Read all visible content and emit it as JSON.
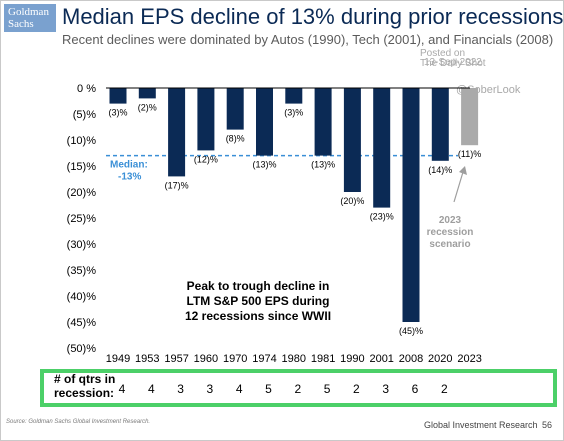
{
  "header": {
    "logo_line1": "Goldman",
    "logo_line2": "Sachs",
    "title": "Median EPS decline of 13% during prior recessions",
    "subtitle": "Recent declines were dominated by Autos (1990), Tech (2001), and Financials (2008)"
  },
  "watermark": {
    "line1": "Posted on",
    "line2": "The Daily Shot",
    "date": "13-Sep-2022",
    "handle": "@SoberLook"
  },
  "chart_data": {
    "type": "bar",
    "categories": [
      "1949",
      "1953",
      "1957",
      "1960",
      "1970",
      "1974",
      "1980",
      "1981",
      "1990",
      "2001",
      "2008",
      "2020",
      "2023"
    ],
    "values": [
      -3,
      -2,
      -17,
      -12,
      -8,
      -13,
      -3,
      -13,
      -20,
      -23,
      -45,
      -14,
      -11
    ],
    "data_labels": [
      "(3)%",
      "(2)%",
      "(17)%",
      "(12)%",
      "(8)%",
      "(13)%",
      "(3)%",
      "(13)%",
      "(20)%",
      "(23)%",
      "(45)%",
      "(14)%",
      "(11)%"
    ],
    "ylim": [
      -50,
      0
    ],
    "y_ticks": [
      "0 %",
      "(5)%",
      "(10)%",
      "(15)%",
      "(20)%",
      "(25)%",
      "(30)%",
      "(35)%",
      "(40)%",
      "(45)%",
      "(50)%"
    ],
    "colors": {
      "bar": "#0b2a55",
      "scenario_bar": "#aaaaaa",
      "median_line": "#3a8fd6",
      "scenario_text": "#9e9e9e"
    },
    "median": {
      "value": -13,
      "label_line1": "Median:",
      "label_line2": "-13%"
    },
    "annotation": {
      "lines": [
        "Peak to trough decline in",
        "LTM S&P 500 EPS during",
        "12 recessions since WWII"
      ]
    },
    "scenario_note": {
      "lines": [
        "2023",
        "recession",
        "scenario"
      ]
    }
  },
  "quarters": {
    "label_line1": "# of qtrs in",
    "label_line2": "recession:",
    "values": [
      "4",
      "4",
      "3",
      "3",
      "4",
      "5",
      "2",
      "5",
      "2",
      "3",
      "6",
      "2"
    ]
  },
  "footer": {
    "source": "Source: Goldman Sachs Global Investment Research.",
    "right": "Global Investment Research",
    "page": "56"
  }
}
